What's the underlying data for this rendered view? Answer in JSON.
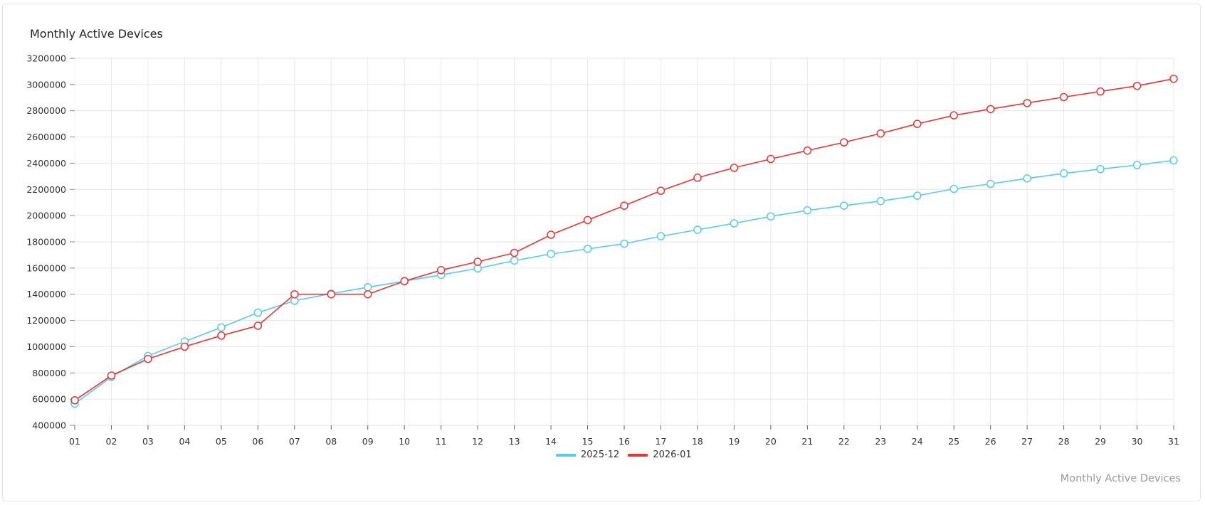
{
  "card": {
    "title": "Monthly Active Devices",
    "footer_label": "Monthly Active Devices"
  },
  "legend": [
    {
      "label": "2025-12",
      "color": "#55ccee"
    },
    {
      "label": "2026-01",
      "color": "#ee3333"
    }
  ],
  "chart_data": {
    "type": "line",
    "title": "Monthly Active Devices",
    "xlabel": "",
    "ylabel": "",
    "categories": [
      "01",
      "02",
      "03",
      "04",
      "05",
      "06",
      "07",
      "08",
      "09",
      "10",
      "11",
      "12",
      "13",
      "14",
      "15",
      "16",
      "17",
      "18",
      "19",
      "20",
      "21",
      "22",
      "23",
      "24",
      "25",
      "26",
      "27",
      "28",
      "29",
      "30",
      "31"
    ],
    "yticks": [
      400000,
      600000,
      800000,
      1000000,
      1200000,
      1400000,
      1600000,
      1800000,
      2000000,
      2200000,
      2400000,
      2600000,
      2800000,
      3000000,
      3200000
    ],
    "ylim": [
      400000,
      3200000
    ],
    "grid": true,
    "legend_position": "bottom",
    "series": [
      {
        "name": "2025-12",
        "color": "#55ccee",
        "values": [
          565000,
          770000,
          930000,
          1040000,
          1147000,
          1260000,
          1350000,
          1405000,
          1454000,
          1500000,
          1548000,
          1597000,
          1657000,
          1708000,
          1746000,
          1786000,
          1843000,
          1892000,
          1941000,
          1994000,
          2040000,
          2076000,
          2111000,
          2152000,
          2204000,
          2242000,
          2284000,
          2322000,
          2355000,
          2386000,
          2421000
        ]
      },
      {
        "name": "2026-01",
        "color": "#ee3333",
        "values": [
          591000,
          780000,
          907000,
          1000000,
          1085000,
          1160000,
          1400000,
          1400000,
          1400000,
          1500000,
          1584000,
          1648000,
          1716000,
          1854000,
          1966000,
          2076000,
          2190000,
          2289000,
          2365000,
          2432000,
          2496000,
          2559000,
          2627000,
          2700000,
          2765000,
          2813000,
          2859000,
          2904000,
          2947000,
          2990000,
          3044000
        ]
      }
    ]
  }
}
